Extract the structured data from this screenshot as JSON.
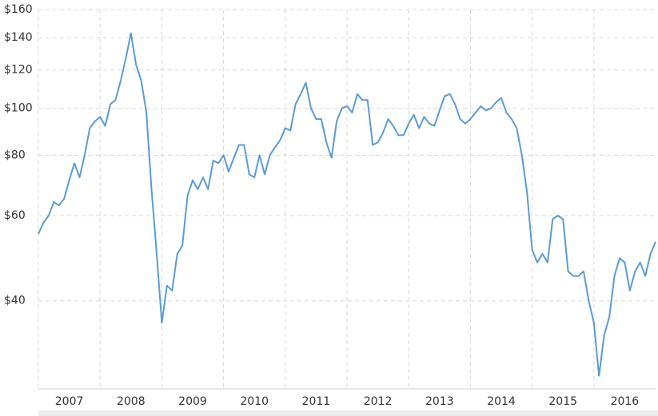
{
  "chart_data": {
    "type": "line",
    "log_scale": true,
    "grid": true,
    "color": "#5b9bd3",
    "xlim": [
      2007,
      2017
    ],
    "xticks": [
      2007,
      2008,
      2009,
      2010,
      2011,
      2012,
      2013,
      2014,
      2015,
      2016
    ],
    "ylim": [
      26.3,
      160
    ],
    "yticks": [
      {
        "value": 40,
        "label": "$40"
      },
      {
        "value": 60,
        "label": "$60"
      },
      {
        "value": 80,
        "label": "$80"
      },
      {
        "value": 100,
        "label": "$100"
      },
      {
        "value": 120,
        "label": "$120"
      },
      {
        "value": 140,
        "label": "$140"
      },
      {
        "value": 160,
        "label": "$160"
      }
    ],
    "x": [
      2007,
      2007.083,
      2007.167,
      2007.25,
      2007.333,
      2007.417,
      2007.5,
      2007.583,
      2007.667,
      2007.75,
      2007.833,
      2007.917,
      2008,
      2008.083,
      2008.167,
      2008.25,
      2008.333,
      2008.417,
      2008.5,
      2008.583,
      2008.667,
      2008.75,
      2008.833,
      2008.917,
      2009,
      2009.083,
      2009.167,
      2009.25,
      2009.333,
      2009.417,
      2009.5,
      2009.583,
      2009.667,
      2009.75,
      2009.833,
      2009.917,
      2010,
      2010.083,
      2010.167,
      2010.25,
      2010.333,
      2010.417,
      2010.5,
      2010.583,
      2010.667,
      2010.75,
      2010.833,
      2010.917,
      2011,
      2011.083,
      2011.167,
      2011.25,
      2011.333,
      2011.417,
      2011.5,
      2011.583,
      2011.667,
      2011.75,
      2011.833,
      2011.917,
      2012,
      2012.083,
      2012.167,
      2012.25,
      2012.333,
      2012.417,
      2012.5,
      2012.583,
      2012.667,
      2012.75,
      2012.833,
      2012.917,
      2013,
      2013.083,
      2013.167,
      2013.25,
      2013.333,
      2013.417,
      2013.5,
      2013.583,
      2013.667,
      2013.75,
      2013.833,
      2013.917,
      2014,
      2014.083,
      2014.167,
      2014.25,
      2014.333,
      2014.417,
      2014.5,
      2014.583,
      2014.667,
      2014.75,
      2014.833,
      2014.917,
      2015,
      2015.083,
      2015.167,
      2015.25,
      2015.333,
      2015.417,
      2015.5,
      2015.583,
      2015.667,
      2015.75,
      2015.833,
      2015.917,
      2016,
      2016.083,
      2016.167,
      2016.25,
      2016.333,
      2016.417,
      2016.5,
      2016.583,
      2016.667,
      2016.75,
      2016.833,
      2016.917,
      2017
    ],
    "values": [
      55,
      58,
      60,
      64,
      63,
      65,
      71,
      77,
      72,
      80,
      91,
      94,
      96,
      92,
      102,
      104,
      114,
      127,
      143,
      123,
      114,
      98,
      68,
      50,
      36,
      43,
      42,
      50,
      52,
      66,
      71,
      68,
      72,
      68,
      78,
      77,
      80,
      74,
      79,
      84,
      84,
      73,
      72,
      80,
      73,
      80,
      83,
      86,
      91,
      90,
      102,
      107,
      113,
      100,
      95,
      95,
      85,
      79,
      94,
      100,
      101,
      98,
      107,
      104,
      104,
      84,
      85,
      89,
      95,
      92,
      88,
      88,
      93,
      97,
      91,
      96,
      93,
      92,
      99,
      106,
      107,
      102,
      95,
      93,
      95,
      98,
      101,
      99,
      100,
      103,
      105,
      98,
      95,
      91,
      80,
      67,
      51,
      48,
      50,
      48,
      59,
      60,
      59,
      46,
      45,
      45,
      46,
      40,
      36,
      28,
      34,
      37,
      45,
      49,
      48,
      42,
      46,
      48,
      45,
      50,
      53
    ]
  }
}
